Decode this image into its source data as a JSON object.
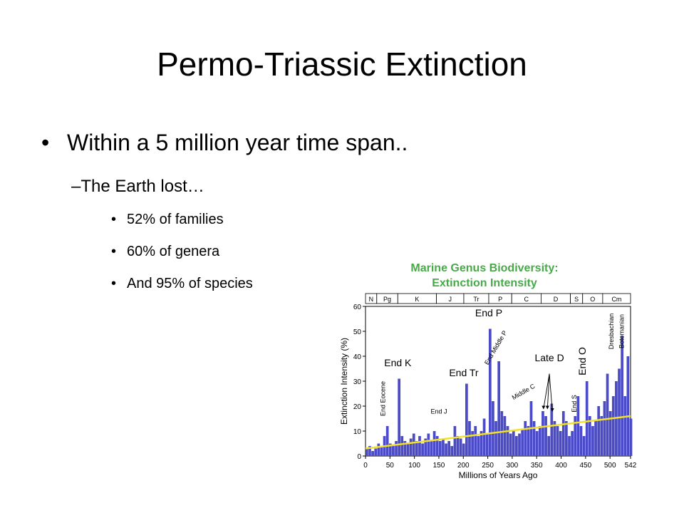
{
  "slide": {
    "title": "Permo-Triassic Extinction",
    "bullet_1": "Within a 5 million year time span..",
    "bullet_2": "–The Earth lost…",
    "sub_bullets": [
      "52% of families",
      "60% of genera",
      "And 95% of species"
    ],
    "bullet_glyph": "•"
  },
  "chart_data": {
    "type": "bar",
    "title_line1": "Marine Genus Biodiversity:",
    "title_line2": "Extinction Intensity",
    "title_color": "#49a94a",
    "bar_color": "#4b4bc8",
    "trend_color": "#f2e12a",
    "xlabel": "Millions of Years Ago",
    "ylabel": "Extinction Intensity (%)",
    "xlim": [
      0,
      542
    ],
    "ylim": [
      0,
      60
    ],
    "xticks": [
      "0",
      "50",
      "100",
      "150",
      "200",
      "250",
      "300",
      "350",
      "400",
      "450",
      "500",
      "542"
    ],
    "yticks": [
      "0",
      "10",
      "20",
      "30",
      "40",
      "50",
      "60"
    ],
    "xtick_values": [
      0,
      50,
      100,
      150,
      200,
      250,
      300,
      350,
      400,
      450,
      500,
      542
    ],
    "ytick_values": [
      0,
      10,
      20,
      30,
      40,
      50,
      60
    ],
    "periods": [
      {
        "label": "N",
        "start": 0,
        "end": 23
      },
      {
        "label": "Pg",
        "start": 23,
        "end": 66
      },
      {
        "label": "K",
        "start": 66,
        "end": 145
      },
      {
        "label": "J",
        "start": 145,
        "end": 201
      },
      {
        "label": "Tr",
        "start": 201,
        "end": 252
      },
      {
        "label": "P",
        "start": 252,
        "end": 299
      },
      {
        "label": "C",
        "start": 299,
        "end": 359
      },
      {
        "label": "D",
        "start": 359,
        "end": 419
      },
      {
        "label": "S",
        "start": 419,
        "end": 444
      },
      {
        "label": "O",
        "start": 444,
        "end": 485
      },
      {
        "label": "Cm",
        "start": 485,
        "end": 542
      }
    ],
    "x": [
      0,
      6,
      12,
      18,
      24,
      30,
      36,
      42,
      48,
      54,
      60,
      66,
      72,
      78,
      84,
      90,
      96,
      102,
      108,
      114,
      120,
      126,
      132,
      138,
      144,
      150,
      156,
      162,
      168,
      174,
      180,
      186,
      192,
      198,
      204,
      210,
      216,
      222,
      228,
      234,
      240,
      246,
      252,
      258,
      264,
      270,
      276,
      282,
      288,
      294,
      300,
      306,
      312,
      318,
      324,
      330,
      336,
      342,
      348,
      354,
      360,
      366,
      372,
      378,
      384,
      390,
      396,
      402,
      408,
      414,
      420,
      426,
      432,
      438,
      444,
      450,
      456,
      462,
      468,
      474,
      480,
      486,
      492,
      498,
      504,
      510,
      516,
      522,
      528,
      534,
      540
    ],
    "values": [
      3,
      4,
      2,
      3,
      5,
      4,
      8,
      12,
      5,
      4,
      6,
      31,
      8,
      6,
      5,
      7,
      9,
      6,
      8,
      5,
      7,
      9,
      6,
      10,
      8,
      6,
      7,
      5,
      6,
      4,
      12,
      8,
      7,
      5,
      29,
      14,
      10,
      12,
      8,
      10,
      15,
      9,
      51,
      22,
      14,
      38,
      18,
      16,
      12,
      9,
      10,
      8,
      9,
      11,
      14,
      12,
      22,
      14,
      10,
      12,
      18,
      16,
      8,
      21,
      14,
      12,
      10,
      18,
      14,
      8,
      10,
      16,
      24,
      12,
      8,
      30,
      16,
      12,
      14,
      20,
      16,
      22,
      33,
      18,
      24,
      30,
      35,
      48,
      24,
      40,
      15
    ],
    "trend": [
      [
        0,
        3
      ],
      [
        542,
        16
      ]
    ],
    "annotations": [
      {
        "text": "End Eocene",
        "x": 40,
        "y": 23,
        "angle": -90,
        "size": 9
      },
      {
        "text": "End K",
        "x": 66,
        "y": 36,
        "angle": 0,
        "size": 14
      },
      {
        "text": "End J",
        "x": 150,
        "y": 17,
        "angle": 0,
        "size": 9
      },
      {
        "text": "End Tr",
        "x": 201,
        "y": 32,
        "angle": 0,
        "size": 14
      },
      {
        "text": "End P",
        "x": 252,
        "y": 56,
        "angle": 0,
        "size": 14
      },
      {
        "text": "End Middle P",
        "x": 270,
        "y": 43,
        "angle": -60,
        "size": 9
      },
      {
        "text": "Middle C",
        "x": 325,
        "y": 25,
        "angle": -30,
        "size": 9
      },
      {
        "text": "Late D",
        "x": 376,
        "y": 38,
        "angle": 0,
        "size": 14
      },
      {
        "text": "End S",
        "x": 431,
        "y": 21,
        "angle": -90,
        "size": 9
      },
      {
        "text": "End O",
        "x": 450,
        "y": 38,
        "angle": -90,
        "size": 14
      },
      {
        "text": "Dresbachian",
        "x": 507,
        "y": 50,
        "angle": -90,
        "size": 9
      },
      {
        "text": "Botomanian",
        "x": 528,
        "y": 50,
        "angle": -90,
        "size": 9
      }
    ]
  }
}
